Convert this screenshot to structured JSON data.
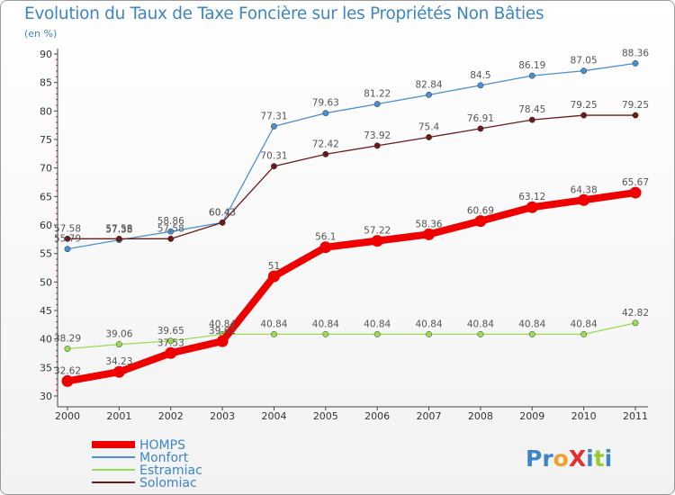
{
  "title": "Evolution du Taux de Taxe Foncière sur les Propriétés Non Bâties",
  "subtitle": "(en %)",
  "logo": "ProXiti",
  "chart_data": {
    "type": "line",
    "x": [
      "2000",
      "2001",
      "2002",
      "2003",
      "2004",
      "2005",
      "2006",
      "2007",
      "2008",
      "2009",
      "2010",
      "2011"
    ],
    "ylim": [
      30,
      90
    ],
    "yticks": [
      30,
      35,
      40,
      45,
      50,
      55,
      60,
      65,
      70,
      75,
      80,
      85,
      90
    ],
    "grid": false,
    "legend_position": "bottom-left",
    "series": [
      {
        "name": "HOMPS",
        "color": "#ee0000",
        "values": [
          32.62,
          34.23,
          37.53,
          39.61,
          51,
          56.1,
          57.22,
          58.36,
          60.69,
          63.12,
          64.38,
          65.67
        ],
        "labels": [
          "32.62",
          "34.23",
          "37.53",
          "39.61",
          "51",
          "56.1",
          "57.22",
          "58.36",
          "60.69",
          "63.12",
          "64.38",
          "65.67"
        ]
      },
      {
        "name": "Monfort",
        "color": "#4a8fd0",
        "values": [
          55.79,
          57.38,
          58.86,
          60.43,
          77.31,
          79.63,
          81.22,
          82.84,
          84.5,
          86.19,
          87.05,
          88.36
        ],
        "labels": [
          "55.79",
          "57.38",
          "58.86",
          "60.43",
          "77.31",
          "79.63",
          "81.22",
          "82.84",
          "84.5",
          "86.19",
          "87.05",
          "88.36"
        ]
      },
      {
        "name": "Estramiac",
        "color": "#99dd55",
        "values": [
          38.29,
          39.06,
          39.65,
          40.84,
          40.84,
          40.84,
          40.84,
          40.84,
          40.84,
          40.84,
          40.84,
          42.82
        ],
        "labels": [
          "38.29",
          "39.06",
          "39.65",
          "40.84",
          "40.84",
          "40.84",
          "40.84",
          "40.84",
          "40.84",
          "40.84",
          "40.84",
          "42.82"
        ]
      },
      {
        "name": "Solomiac",
        "color": "#6b1a1a",
        "values": [
          57.58,
          57.58,
          57.58,
          60.43,
          70.31,
          72.42,
          73.92,
          75.4,
          76.91,
          78.45,
          79.25,
          79.25
        ],
        "labels": [
          "57.58",
          "57.58",
          "57.58",
          "60.43",
          "70.31",
          "72.42",
          "73.92",
          "75.4",
          "76.91",
          "78.45",
          "79.25",
          "79.25"
        ]
      }
    ]
  }
}
